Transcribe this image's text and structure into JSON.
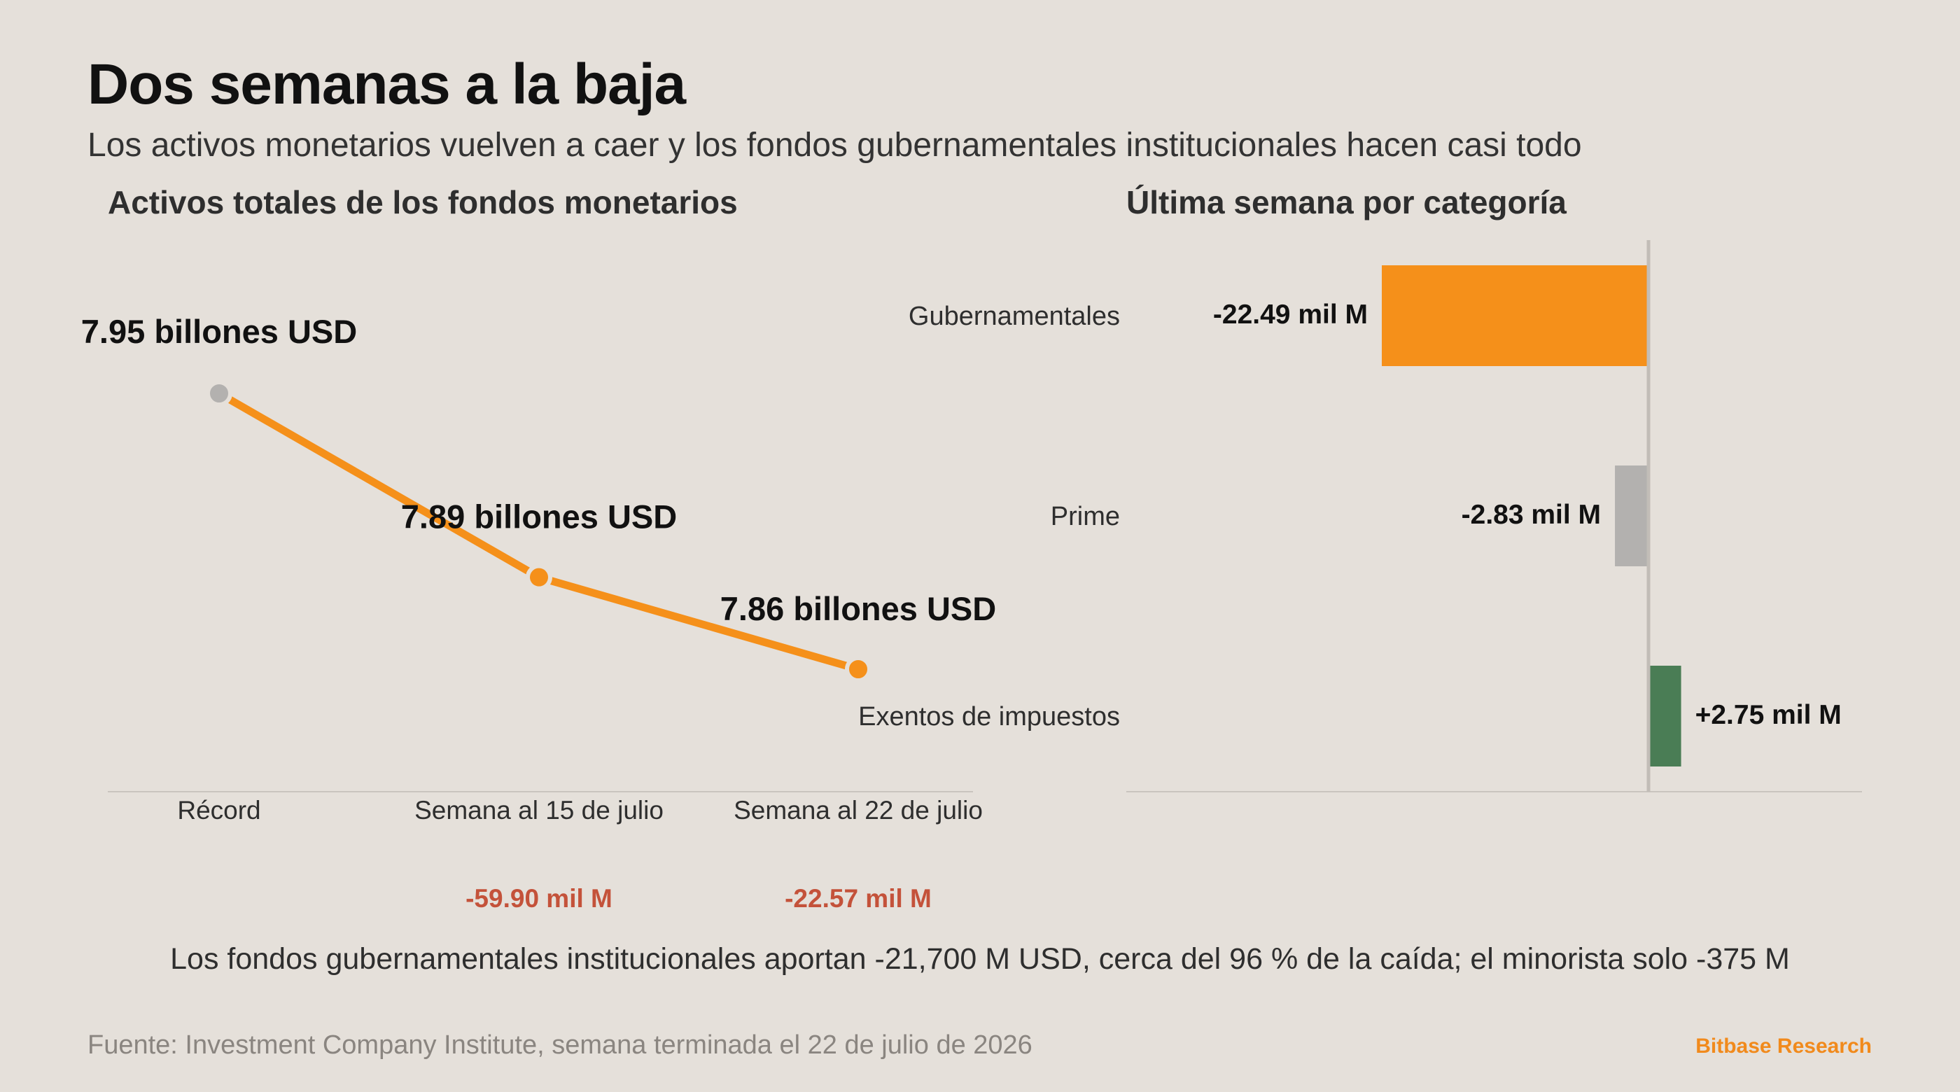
{
  "header": {
    "title": "Dos semanas a la baja",
    "subtitle": "Los activos monetarios vuelven a caer y los fondos gubernamentales institucionales hacen casi todo"
  },
  "colors": {
    "background": "#e5e0da",
    "accent_orange": "#f5901a",
    "neutral_gray": "#b3b1af",
    "positive_green": "#4a7d55",
    "negative_red": "#c4523a",
    "brand_orange": "#f18a1c"
  },
  "chart_data": [
    {
      "type": "line",
      "title": "Activos totales de los fondos monetarios",
      "categories": [
        "Récord",
        "Semana al 15 de julio",
        "Semana al 22 de julio"
      ],
      "values": [
        7.95,
        7.89,
        7.86
      ],
      "unit": "billones USD",
      "point_labels": [
        "7.95 billones USD",
        "7.89 billones USD",
        "7.86 billones USD"
      ],
      "change_labels": [
        "",
        "-59.90 mil M",
        "-22.57 mil M"
      ],
      "point_colors": [
        "#b3b1af",
        "#f5901a",
        "#f5901a"
      ],
      "line_color": "#f5901a",
      "grid": false
    },
    {
      "type": "bar",
      "orientation": "horizontal",
      "title": "Última semana por categoría",
      "categories": [
        "Gubernamentales",
        "Prime",
        "Exentos de impuestos"
      ],
      "values": [
        -22.49,
        -2.83,
        2.75
      ],
      "unit": "mil M",
      "value_labels": [
        "-22.49 mil M",
        "-2.83 mil M",
        "+2.75 mil M"
      ],
      "colors": [
        "#f5901a",
        "#b3b1af",
        "#4a7d55"
      ],
      "grid": false
    }
  ],
  "takeaway": "Los fondos gubernamentales institucionales aportan -21,700 M USD, cerca del 96 % de la caída; el minorista solo -375 M",
  "footer": {
    "source": "Fuente: Investment Company Institute, semana terminada el 22 de julio de 2026",
    "brand": "Bitbase Research"
  }
}
